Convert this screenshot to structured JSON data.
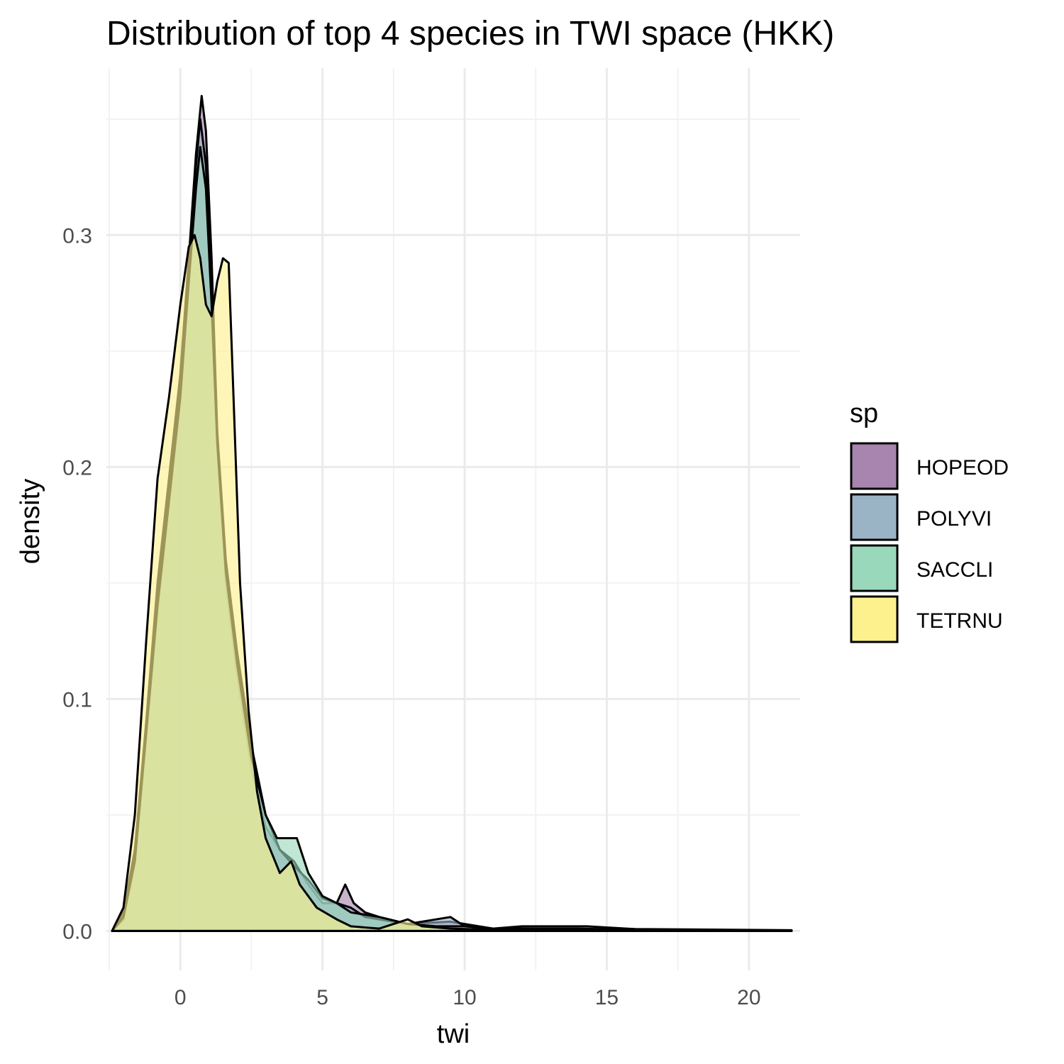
{
  "chart_data": {
    "type": "area",
    "title": "Distribution of top 4 species in TWI space (HKK)",
    "xlabel": "twi",
    "ylabel": "density",
    "xlim": [
      -2.6,
      21.8
    ],
    "ylim": [
      -0.017,
      0.372
    ],
    "x_ticks": [
      0,
      5,
      10,
      15,
      20
    ],
    "x_tick_labels": [
      "0",
      "5",
      "10",
      "15",
      "20"
    ],
    "y_ticks": [
      0.0,
      0.1,
      0.2,
      0.3
    ],
    "y_tick_labels": [
      "0.0",
      "0.1",
      "0.2",
      "0.3"
    ],
    "grid": true,
    "legend": {
      "title": "sp",
      "position": "right"
    },
    "series": [
      {
        "name": "HOPEOD",
        "color": "#a785ae",
        "points": [
          [
            -2.4,
            0.0
          ],
          [
            -2.0,
            0.008
          ],
          [
            -1.6,
            0.035
          ],
          [
            -1.2,
            0.09
          ],
          [
            -0.8,
            0.15
          ],
          [
            -0.4,
            0.195
          ],
          [
            0.0,
            0.24
          ],
          [
            0.3,
            0.29
          ],
          [
            0.55,
            0.335
          ],
          [
            0.75,
            0.36
          ],
          [
            0.9,
            0.345
          ],
          [
            1.1,
            0.29
          ],
          [
            1.3,
            0.215
          ],
          [
            1.6,
            0.15
          ],
          [
            2.0,
            0.11
          ],
          [
            2.5,
            0.07
          ],
          [
            3.0,
            0.045
          ],
          [
            3.5,
            0.035
          ],
          [
            4.0,
            0.03
          ],
          [
            4.5,
            0.02
          ],
          [
            5.0,
            0.012
          ],
          [
            5.5,
            0.012
          ],
          [
            5.8,
            0.02
          ],
          [
            6.1,
            0.012
          ],
          [
            6.5,
            0.008
          ],
          [
            7.0,
            0.006
          ],
          [
            8.0,
            0.003
          ],
          [
            9.5,
            0.004
          ],
          [
            10.0,
            0.003
          ],
          [
            11.0,
            0.001
          ],
          [
            12.0,
            0.002
          ],
          [
            14.3,
            0.002
          ],
          [
            16.0,
            0.0008
          ],
          [
            21.5,
            0.0003
          ]
        ]
      },
      {
        "name": "POLYVI",
        "color": "#9ab4c5",
        "points": [
          [
            -2.4,
            0.0
          ],
          [
            -2.0,
            0.005
          ],
          [
            -1.6,
            0.03
          ],
          [
            -1.2,
            0.085
          ],
          [
            -0.8,
            0.145
          ],
          [
            -0.4,
            0.19
          ],
          [
            0.0,
            0.235
          ],
          [
            0.3,
            0.285
          ],
          [
            0.55,
            0.33
          ],
          [
            0.7,
            0.35
          ],
          [
            0.9,
            0.33
          ],
          [
            1.1,
            0.28
          ],
          [
            1.3,
            0.215
          ],
          [
            1.6,
            0.16
          ],
          [
            2.0,
            0.12
          ],
          [
            2.5,
            0.08
          ],
          [
            3.0,
            0.05
          ],
          [
            3.5,
            0.035
          ],
          [
            4.0,
            0.028
          ],
          [
            4.5,
            0.022
          ],
          [
            5.0,
            0.014
          ],
          [
            5.5,
            0.012
          ],
          [
            6.0,
            0.01
          ],
          [
            6.5,
            0.006
          ],
          [
            7.0,
            0.005
          ],
          [
            8.0,
            0.003
          ],
          [
            9.5,
            0.006
          ],
          [
            10.0,
            0.002
          ],
          [
            11.0,
            0.001
          ],
          [
            12.0,
            0.001
          ],
          [
            14.0,
            0.001
          ],
          [
            16.0,
            0.0005
          ],
          [
            21.5,
            0.0002
          ]
        ]
      },
      {
        "name": "SACCLI",
        "color": "#99d8bb",
        "points": [
          [
            -2.4,
            0.0
          ],
          [
            -2.0,
            0.006
          ],
          [
            -1.6,
            0.03
          ],
          [
            -1.2,
            0.085
          ],
          [
            -0.8,
            0.14
          ],
          [
            -0.4,
            0.185
          ],
          [
            0.0,
            0.23
          ],
          [
            0.3,
            0.28
          ],
          [
            0.55,
            0.32
          ],
          [
            0.7,
            0.338
          ],
          [
            0.9,
            0.32
          ],
          [
            1.1,
            0.27
          ],
          [
            1.3,
            0.21
          ],
          [
            1.6,
            0.155
          ],
          [
            2.0,
            0.115
          ],
          [
            2.5,
            0.075
          ],
          [
            3.0,
            0.05
          ],
          [
            3.4,
            0.04
          ],
          [
            3.8,
            0.04
          ],
          [
            4.1,
            0.04
          ],
          [
            4.5,
            0.025
          ],
          [
            5.0,
            0.015
          ],
          [
            5.5,
            0.012
          ],
          [
            6.0,
            0.008
          ],
          [
            7.0,
            0.006
          ],
          [
            8.0,
            0.003
          ],
          [
            9.0,
            0.002
          ],
          [
            10.0,
            0.002
          ],
          [
            11.0,
            0.001
          ],
          [
            12.0,
            0.001
          ],
          [
            14.0,
            0.0005
          ],
          [
            21.5,
            0.0002
          ]
        ]
      },
      {
        "name": "TETRNU",
        "color": "#fdf18d",
        "points": [
          [
            -2.4,
            0.0
          ],
          [
            -2.0,
            0.01
          ],
          [
            -1.6,
            0.05
          ],
          [
            -1.2,
            0.125
          ],
          [
            -0.8,
            0.195
          ],
          [
            -0.4,
            0.23
          ],
          [
            0.0,
            0.27
          ],
          [
            0.3,
            0.295
          ],
          [
            0.5,
            0.3
          ],
          [
            0.7,
            0.29
          ],
          [
            0.9,
            0.27
          ],
          [
            1.1,
            0.265
          ],
          [
            1.3,
            0.28
          ],
          [
            1.5,
            0.29
          ],
          [
            1.7,
            0.288
          ],
          [
            1.9,
            0.22
          ],
          [
            2.1,
            0.15
          ],
          [
            2.4,
            0.095
          ],
          [
            2.7,
            0.06
          ],
          [
            3.0,
            0.04
          ],
          [
            3.5,
            0.025
          ],
          [
            3.9,
            0.03
          ],
          [
            4.2,
            0.02
          ],
          [
            4.8,
            0.01
          ],
          [
            5.5,
            0.005
          ],
          [
            6.0,
            0.002
          ],
          [
            7.0,
            0.001
          ],
          [
            8.0,
            0.005
          ],
          [
            8.5,
            0.002
          ],
          [
            9.5,
            0.001
          ],
          [
            11.0,
            0.0005
          ],
          [
            21.5,
            0.0001
          ]
        ]
      }
    ]
  }
}
